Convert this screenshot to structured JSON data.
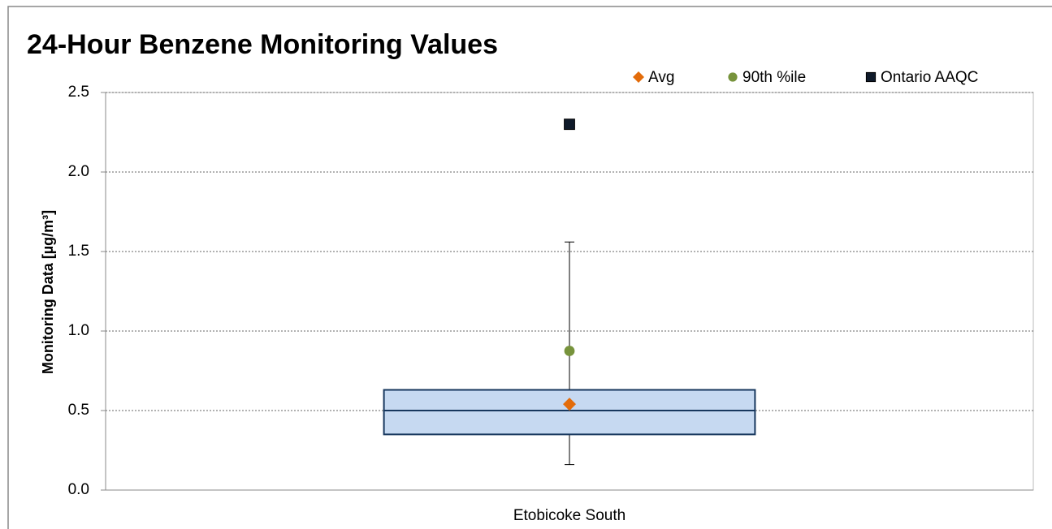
{
  "chart_data": {
    "type": "box",
    "title": "24-Hour Benzene Monitoring Values",
    "y_label": "Monitoring Data [µg/m³]",
    "categories": [
      "Etobicoke South"
    ],
    "boxes": [
      {
        "min": 0.16,
        "q1": 0.35,
        "median": 0.5,
        "q3": 0.63,
        "max": 1.56
      }
    ],
    "box_color": "#c6d9f1",
    "series": [
      {
        "name": "Avg",
        "color": "#e36c0a",
        "marker": "diamond",
        "values": [
          0.54
        ]
      },
      {
        "name": "90th %ile",
        "color": "#77933c",
        "marker": "circle",
        "values": [
          0.875
        ]
      },
      {
        "name": "Ontario AAQC",
        "color": "#0f1a2a",
        "marker": "square",
        "values": [
          2.3
        ]
      }
    ],
    "ylim": [
      0,
      2.5
    ],
    "yticks": [
      {
        "value": 0,
        "label": "0.0"
      },
      0.5,
      {
        "value": 1,
        "label": "1.0"
      },
      1.5,
      {
        "value": 2,
        "label": "2.0"
      },
      2.5
    ],
    "grid": true,
    "legend": "top-right"
  }
}
